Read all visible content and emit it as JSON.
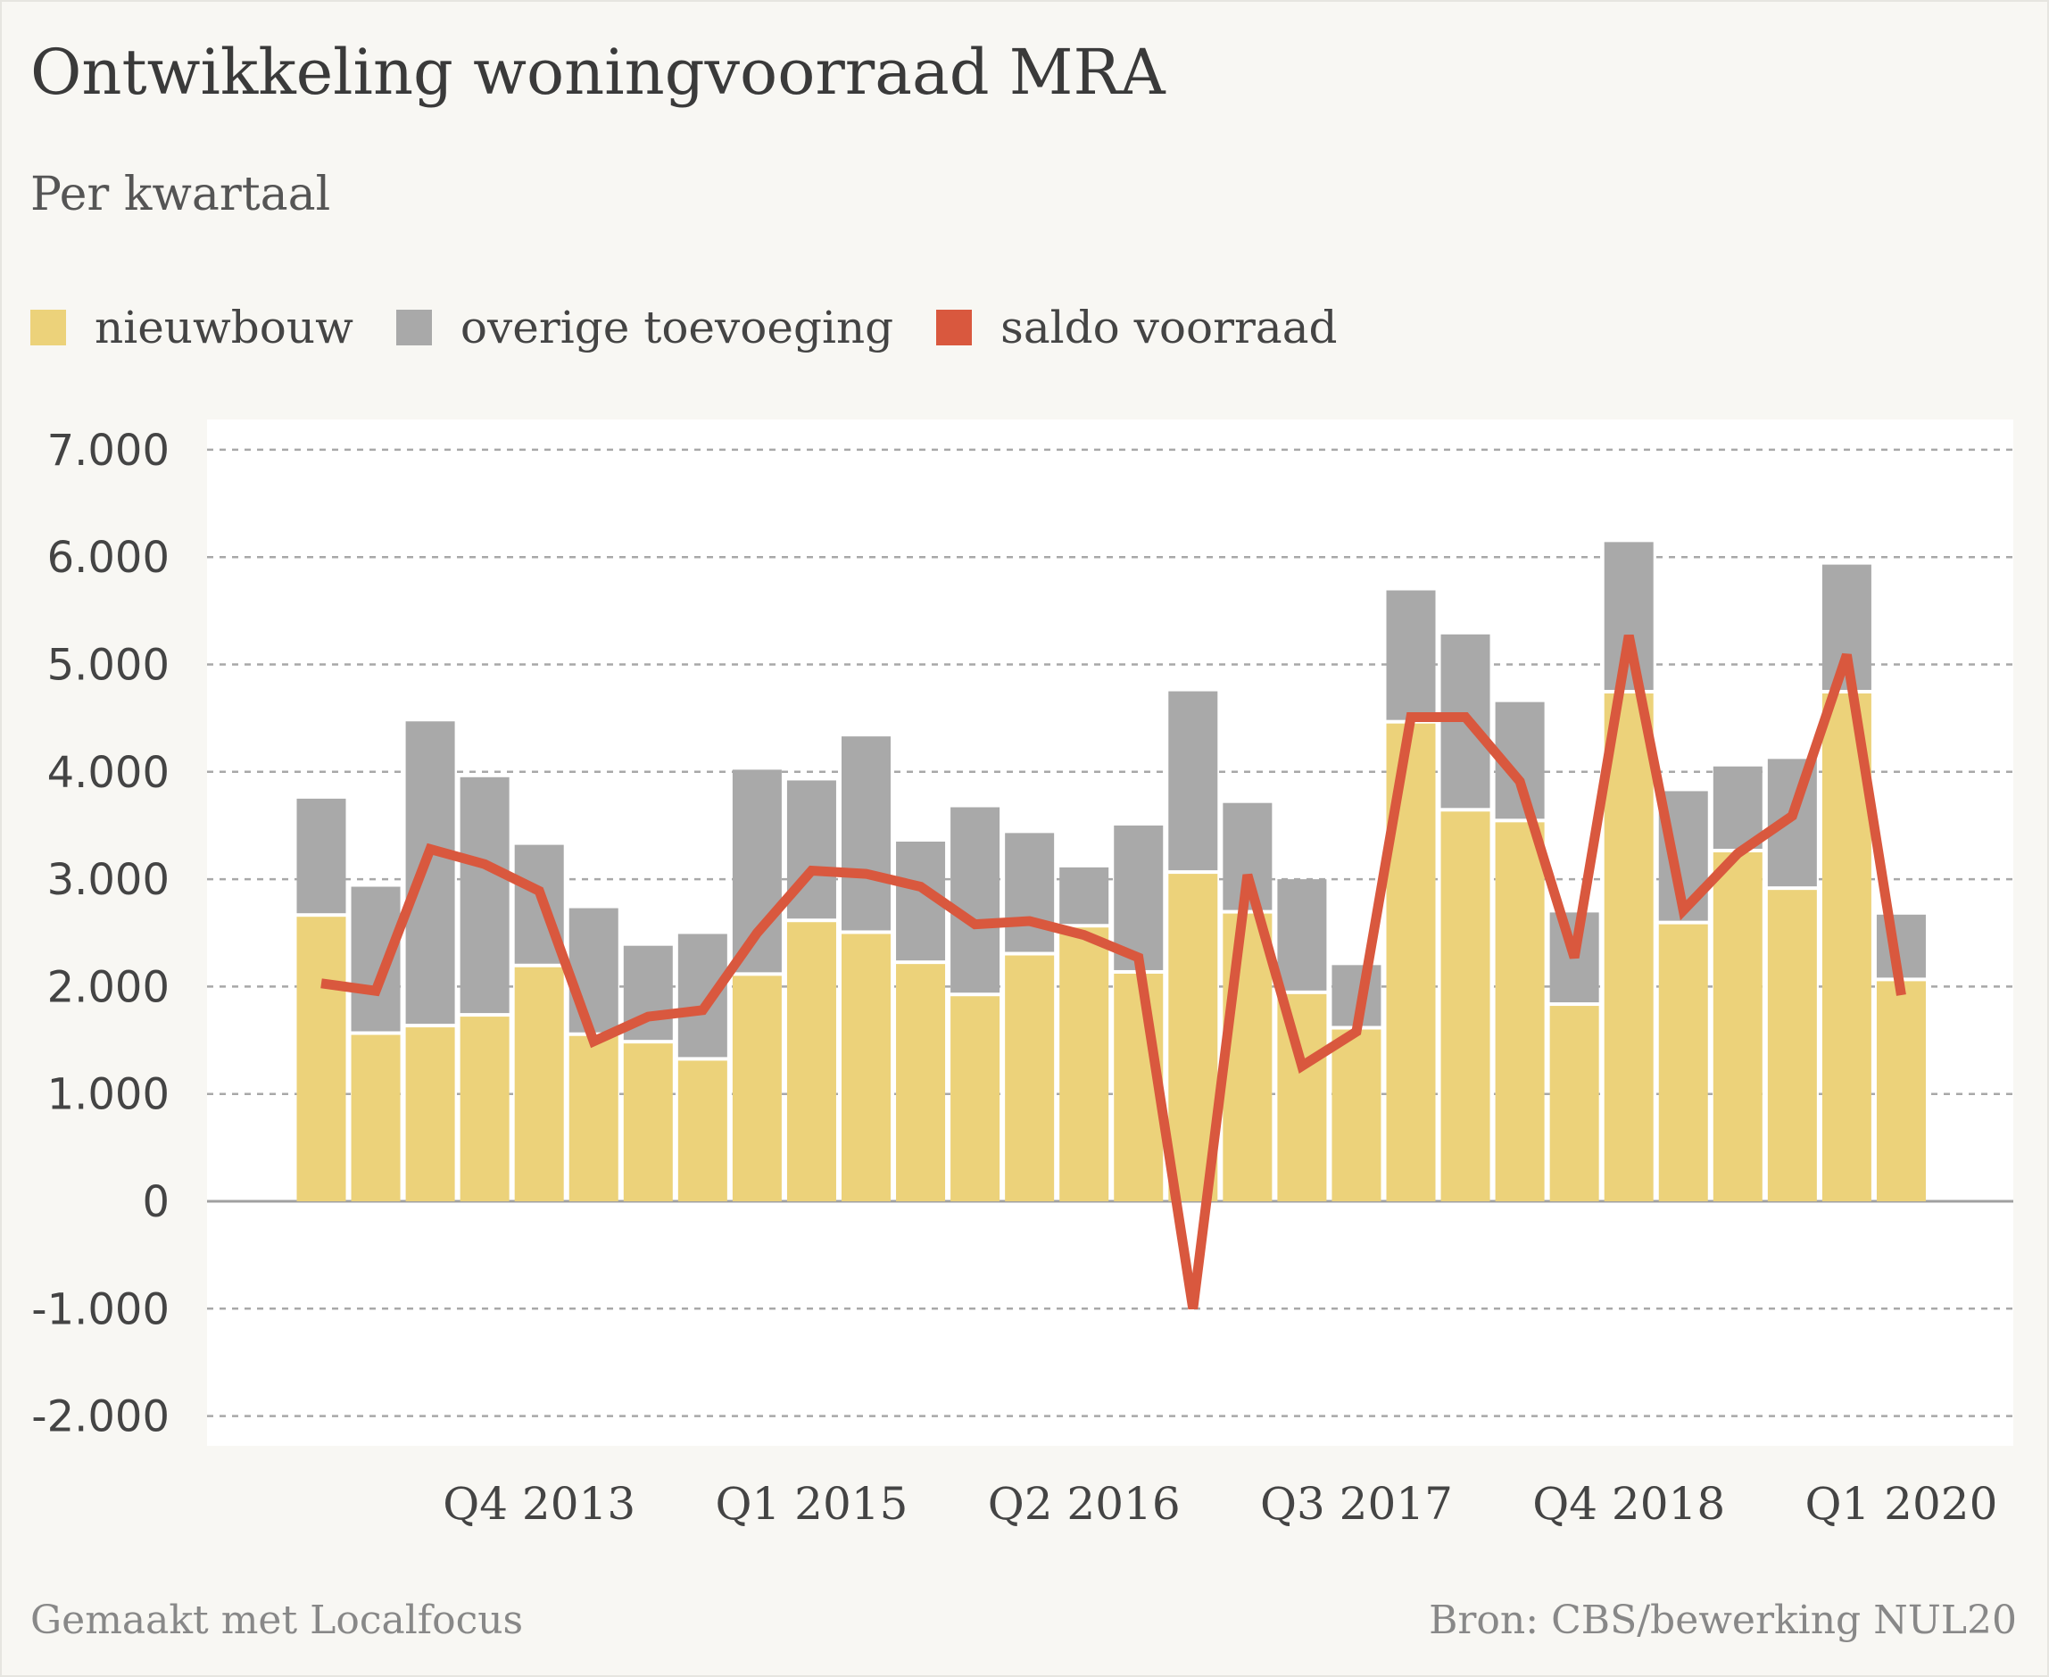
{
  "title": "Ontwikkeling woningvoorraad MRA",
  "subtitle": "Per kwartaal",
  "footer": {
    "made_with": "Gemaakt met Localfocus",
    "source": "Bron: CBS/bewerking NUL20"
  },
  "colors": {
    "nieuwbouw": "#ecd27a",
    "overige": "#a9a9a9",
    "saldo": "#d9583e",
    "grid": "#a8a8a8",
    "axis_text": "#444444"
  },
  "chart_data": {
    "type": "bar",
    "stacked": true,
    "title": "Ontwikkeling woningvoorraad MRA",
    "subtitle": "Per kwartaal",
    "legend": [
      "nieuwbouw",
      "overige toevoeging",
      "saldo voorraad"
    ],
    "legend_position": "top-left",
    "ylim": [
      -2000,
      7000
    ],
    "y_ticks": [
      7000,
      6000,
      5000,
      4000,
      3000,
      2000,
      1000,
      0,
      -1000,
      -2000
    ],
    "y_tick_labels": [
      "7.000",
      "6.000",
      "5.000",
      "4.000",
      "3.000",
      "2.000",
      "1.000",
      "0",
      "-1.000",
      "-2.000"
    ],
    "x_tick_labels": [
      "Q4 2013",
      "Q1 2015",
      "Q2 2016",
      "Q3 2017",
      "Q4 2018",
      "Q1 2020"
    ],
    "x_tick_positions": [
      4,
      9,
      14,
      19,
      24,
      29
    ],
    "grid": true,
    "n_quarters": 31,
    "series": [
      {
        "name": "nieuwbouw",
        "kind": "bar",
        "values": [
          2650,
          1550,
          1620,
          1720,
          2180,
          1540,
          1470,
          1310,
          2100,
          2600,
          2490,
          2210,
          1910,
          2290,
          2550,
          2120,
          3050,
          2680,
          1930,
          1600,
          4450,
          3630,
          3530,
          1820,
          4730,
          2580,
          3250,
          2900,
          4730,
          2050,
          0
        ]
      },
      {
        "name": "overige toevoeging",
        "kind": "bar",
        "values": [
          1100,
          1380,
          2850,
          2230,
          1140,
          1190,
          910,
          1180,
          1920,
          1320,
          1840,
          1140,
          1760,
          1140,
          560,
          1380,
          1700,
          1030,
          1070,
          600,
          1240,
          1650,
          1120,
          870,
          1410,
          1240,
          800,
          1220,
          1200,
          620,
          0
        ]
      },
      {
        "name": "saldo voorraad",
        "kind": "line",
        "values": [
          2030,
          1960,
          3280,
          3140,
          2890,
          1490,
          1720,
          1780,
          2500,
          3080,
          3050,
          2930,
          2580,
          2610,
          2480,
          2270,
          -1000,
          3040,
          1260,
          1580,
          4510,
          4510,
          3910,
          2270,
          5270,
          2710,
          3240,
          3590,
          5090,
          1920,
          null
        ]
      }
    ]
  }
}
